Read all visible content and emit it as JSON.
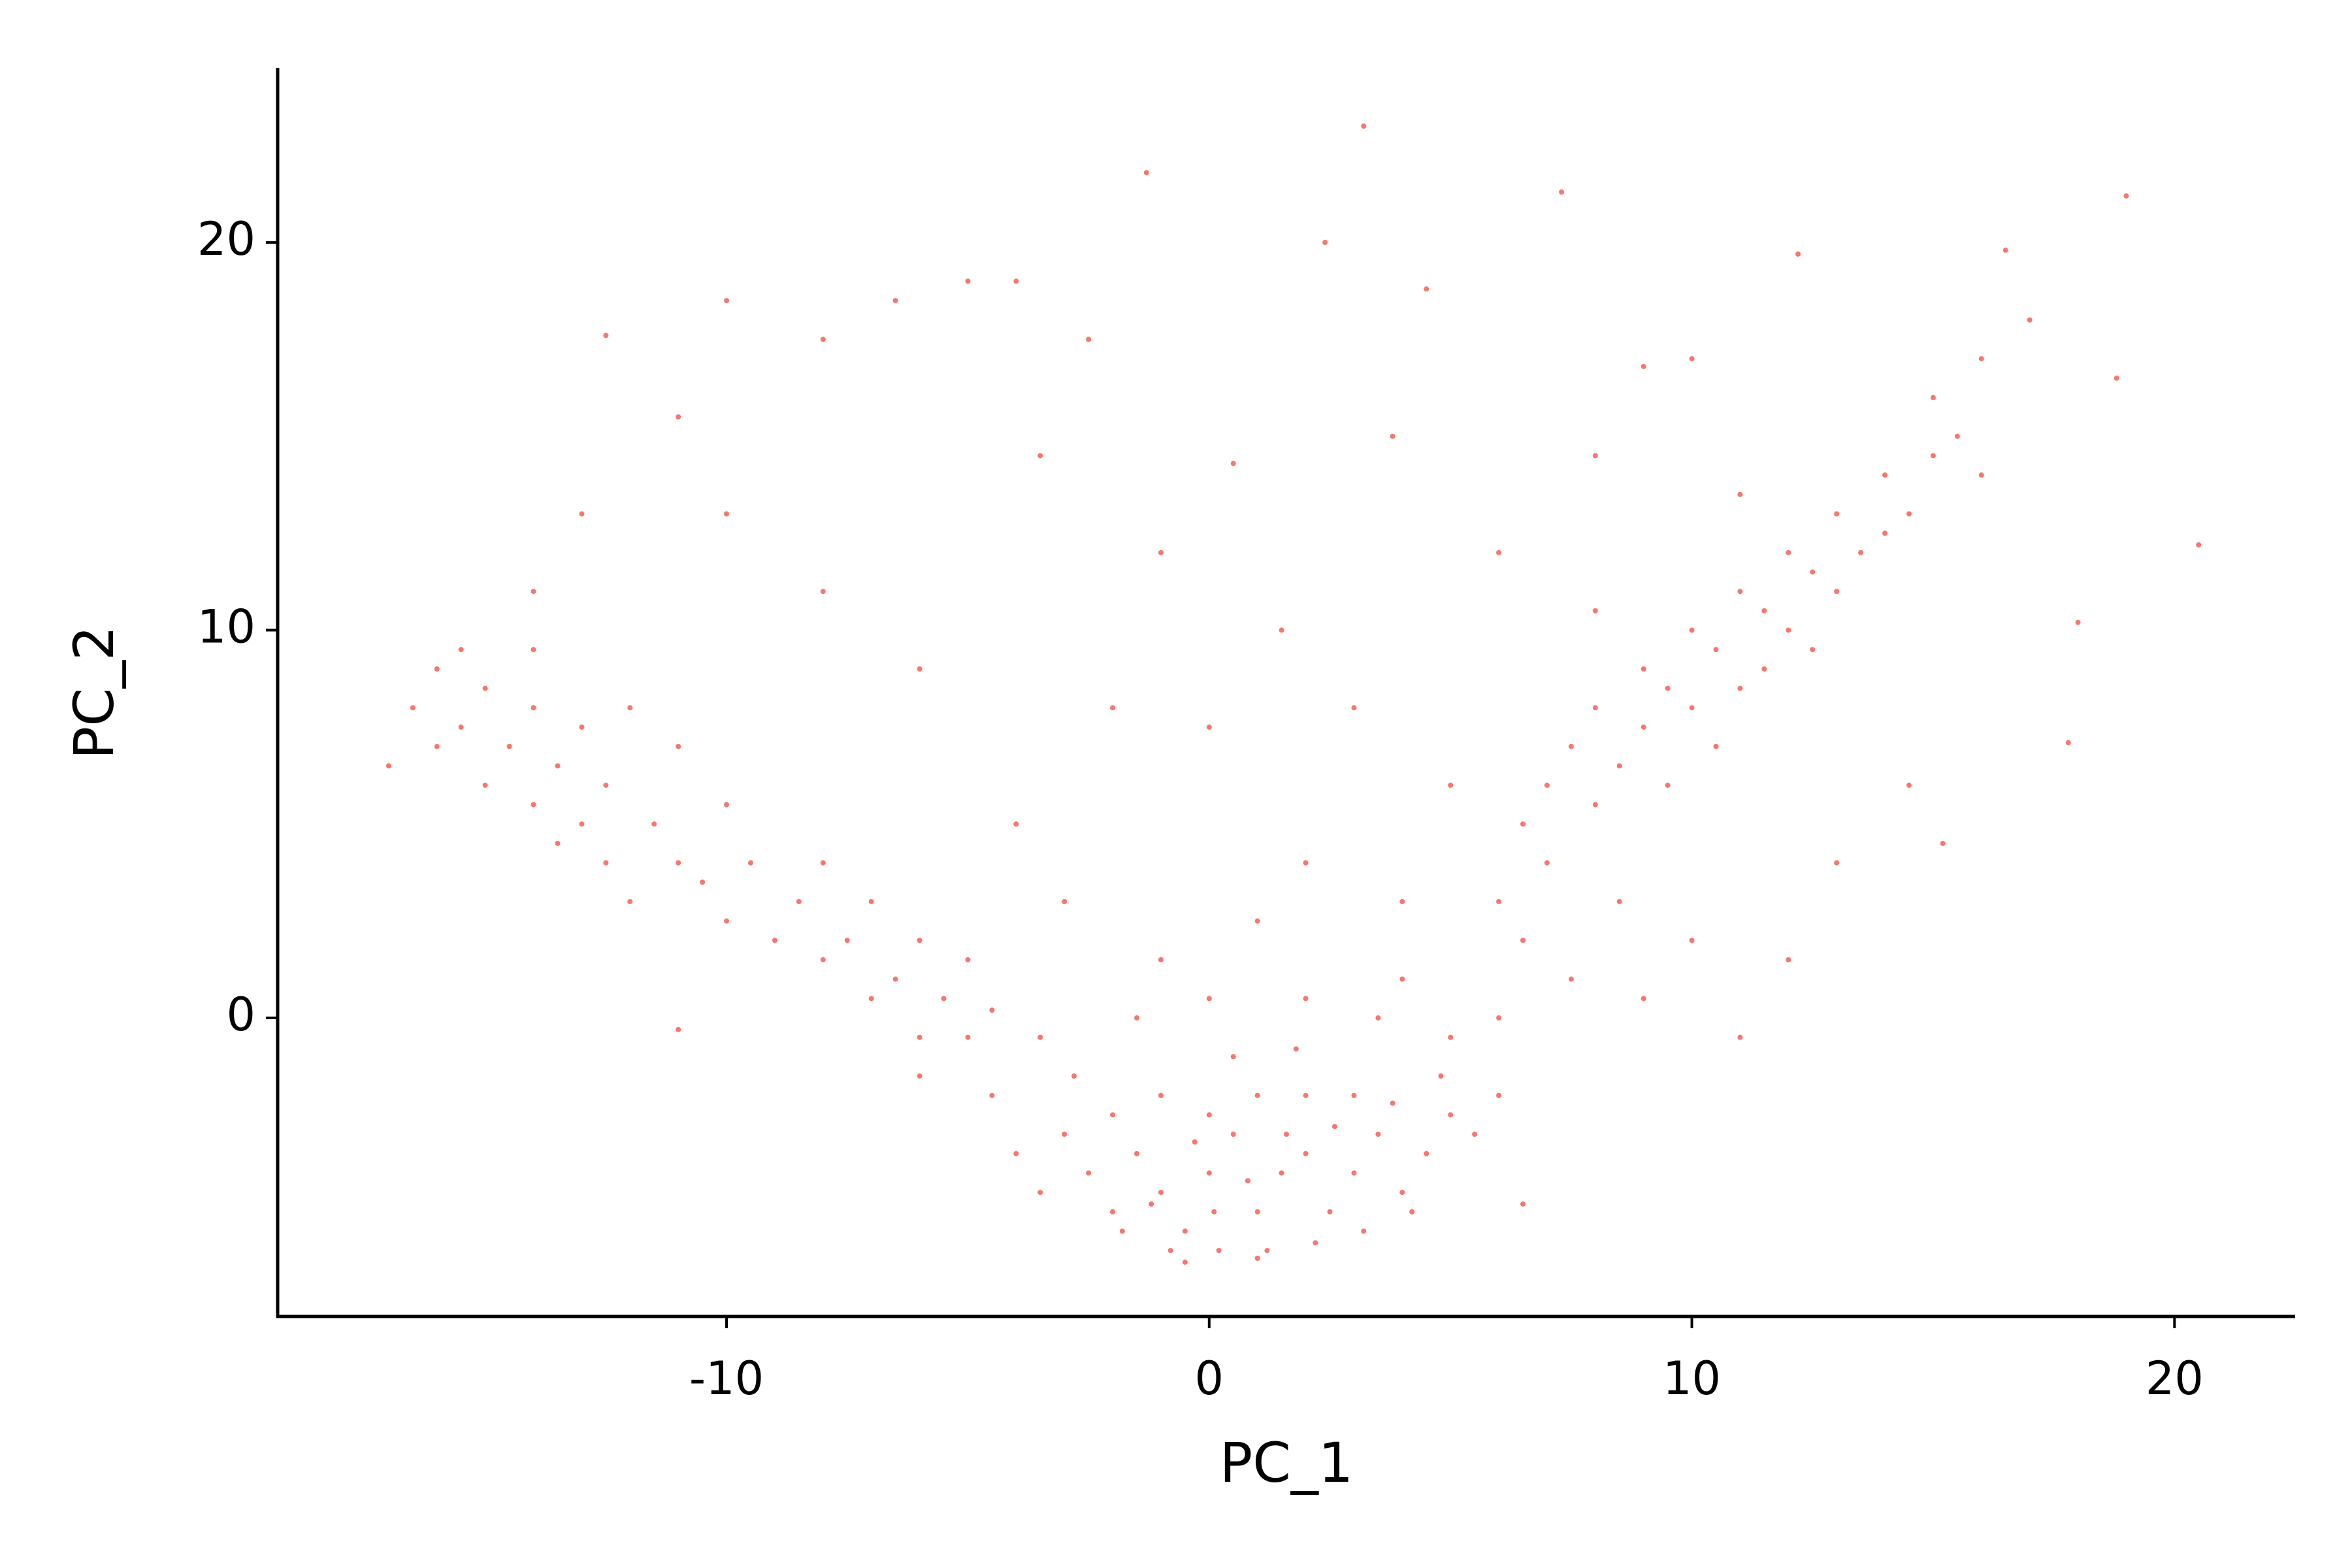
{
  "chart_data": {
    "type": "scatter",
    "xlabel": "PC_1",
    "ylabel": "PC_2",
    "color": "#F8766D",
    "xlim": [
      -19.3,
      22.5
    ],
    "ylim": [
      -7.7,
      24.5
    ],
    "xticks": [
      -10,
      0,
      10,
      20
    ],
    "yticks": [
      0,
      10,
      20
    ],
    "x": [
      -3,
      -2.5,
      -2,
      -1.5,
      -1,
      -0.5,
      0,
      0.5,
      1,
      1.5,
      2,
      2.5,
      3,
      3.5,
      4,
      4.5,
      5,
      -1,
      0,
      1,
      2,
      3,
      -2,
      0.2,
      1.2,
      -0.8,
      2.2,
      -1.8,
      3.2,
      4.2,
      -3.5,
      -4,
      5.5,
      6,
      6.5,
      -2.8,
      0.5,
      1.8,
      -0.3,
      0.8,
      1.6,
      2.6,
      -1.2,
      0.1,
      3.8,
      4.8,
      -4.5,
      -5,
      -3.5,
      2,
      0,
      -1.5,
      3.5,
      5,
      6,
      4,
      -0.5,
      1,
      -17,
      -16.5,
      -16,
      -16,
      -15.5,
      -15,
      -15,
      -14.5,
      -14,
      -14,
      -13.5,
      -13,
      -13,
      -12.5,
      -12.5,
      -12,
      -12,
      -11.5,
      -11,
      -11,
      -10.5,
      -10,
      -10,
      -9.5,
      -9,
      -8.5,
      -8,
      -8,
      -7.5,
      -7,
      -7,
      -6.5,
      -6,
      -6,
      -5.5,
      -5,
      -4.5,
      -14,
      -13.5,
      -15.5,
      -11,
      -6,
      6,
      6.5,
      7,
      7,
      7.5,
      8,
      8,
      8.5,
      9,
      9,
      9.5,
      9.5,
      10,
      10,
      10.5,
      10.5,
      11,
      11,
      11.5,
      11.5,
      12,
      12,
      12.5,
      12.5,
      13,
      13,
      13.5,
      14,
      14,
      14.5,
      15,
      15,
      15.5,
      16,
      16,
      17,
      6.5,
      7.5,
      8.5,
      9,
      10,
      11,
      12,
      13,
      8,
      11,
      14.5,
      15.2,
      18,
      17.8,
      20.5,
      19,
      18.8,
      16.5,
      -12.5,
      -10,
      -8,
      -6.5,
      -5,
      -4,
      -1.3,
      3.2,
      2.4,
      7.3,
      12.2,
      4.5,
      3.8,
      0.5,
      -3.5,
      -2.5,
      -1,
      1.5,
      -2,
      0,
      3,
      5,
      -4,
      -3,
      2,
      4,
      -1,
      1,
      -8,
      -10,
      8,
      6,
      -6,
      -11,
      -13,
      10,
      9,
      -14
    ],
    "values": [
      -3,
      -4,
      -5,
      -3.5,
      -4.5,
      -5.5,
      -4,
      -3,
      -5,
      -4,
      -3.5,
      -5,
      -4,
      -3,
      -4.5,
      -3.5,
      -2.5,
      -2,
      -2.5,
      -2,
      -2,
      -2,
      -2.5,
      -6,
      -6,
      -6,
      -5.8,
      -5.5,
      -5.5,
      -5,
      -4.5,
      -3.5,
      -3,
      -2,
      -4.8,
      -1.5,
      -1,
      -0.8,
      -3.2,
      -4.2,
      -3,
      -2.8,
      -4.8,
      -5,
      -2.2,
      -1.5,
      -2,
      -0.5,
      -0.5,
      0.5,
      0.5,
      0,
      0,
      -0.5,
      0,
      1,
      -6.3,
      -6.2,
      6.5,
      8,
      9,
      7,
      7.5,
      6,
      8.5,
      7,
      5.5,
      8,
      6.5,
      5,
      7.5,
      4,
      6,
      8,
      3,
      5,
      4,
      7,
      3.5,
      2.5,
      5.5,
      4,
      2,
      3,
      1.5,
      4,
      2,
      0.5,
      3,
      1,
      2,
      -0.5,
      0.5,
      1.5,
      0.2,
      9.5,
      4.5,
      9.5,
      -0.3,
      -1.5,
      3,
      5,
      4,
      6,
      7,
      5.5,
      8,
      6.5,
      7.5,
      9,
      6,
      8.5,
      8,
      10,
      7,
      9.5,
      8.5,
      11,
      9,
      10.5,
      10,
      12,
      9.5,
      11.5,
      11,
      13,
      12,
      12.5,
      14,
      13,
      14.5,
      16,
      15,
      14,
      17,
      18,
      2,
      1,
      3,
      0.5,
      2,
      -0.5,
      1.5,
      4,
      10.5,
      13.5,
      6,
      4.5,
      10.2,
      7.1,
      12.2,
      21.2,
      16.5,
      19.8,
      17.6,
      18.5,
      17.5,
      18.5,
      19,
      19,
      21.8,
      23,
      20,
      21.3,
      19.7,
      18.8,
      15,
      14.3,
      14.5,
      17.5,
      12,
      10,
      8,
      7.5,
      8,
      6,
      5,
      3,
      4,
      3,
      1.5,
      2.5,
      11,
      13,
      14.5,
      12,
      9,
      15.5,
      13,
      17,
      16.8,
      11
    ]
  }
}
